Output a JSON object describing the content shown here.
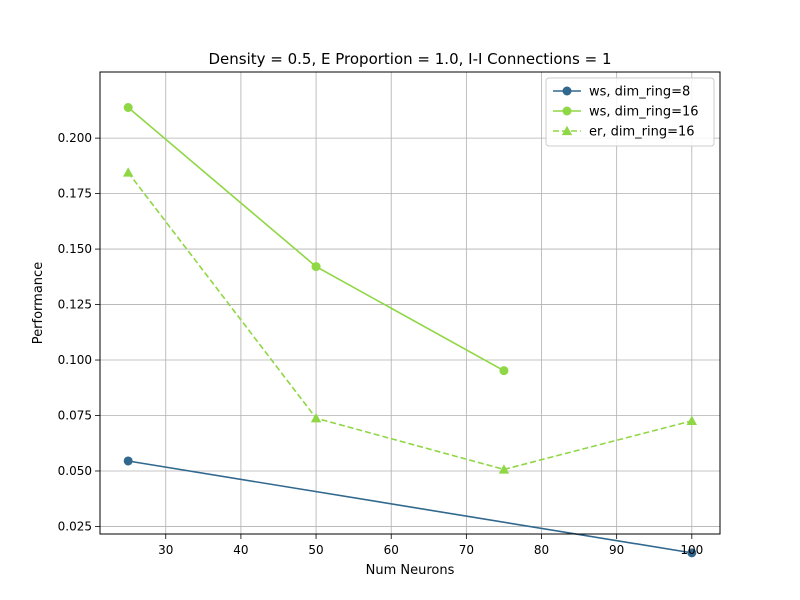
{
  "chart_data": {
    "type": "line",
    "title": "Density = 0.5, E Proportion = 1.0, I-I Connections = 1",
    "xlabel": "Num Neurons",
    "ylabel": "Performance",
    "xlim": [
      21.25,
      103.75
    ],
    "ylim": [
      0.0216,
      0.2298
    ],
    "xticks": [
      30,
      40,
      50,
      60,
      70,
      80,
      90,
      100
    ],
    "xtick_labels": [
      "30",
      "40",
      "50",
      "60",
      "70",
      "80",
      "90",
      "100"
    ],
    "yticks": [
      0.025,
      0.05,
      0.075,
      0.1,
      0.125,
      0.15,
      0.175,
      0.2
    ],
    "ytick_labels": [
      "0.025",
      "0.050",
      "0.075",
      "0.100",
      "0.125",
      "0.150",
      "0.175",
      "0.200"
    ],
    "grid": true,
    "legend_position": "top-right",
    "series": [
      {
        "name": "ws, dim_ring=8",
        "color": "#31688e",
        "marker": "circle",
        "linestyle": "solid",
        "x": [
          25,
          100
        ],
        "y": [
          0.0545,
          0.0131
        ]
      },
      {
        "name": "ws, dim_ring=16",
        "color": "#8fd744",
        "marker": "circle",
        "linestyle": "solid",
        "x": [
          25,
          50,
          75
        ],
        "y": [
          0.2138,
          0.1421,
          0.0952
        ]
      },
      {
        "name": "er, dim_ring=16",
        "color": "#8fd744",
        "marker": "triangle",
        "linestyle": "dashed",
        "x": [
          25,
          50,
          75,
          100
        ],
        "y": [
          0.1845,
          0.0738,
          0.0507,
          0.0726
        ]
      }
    ]
  }
}
